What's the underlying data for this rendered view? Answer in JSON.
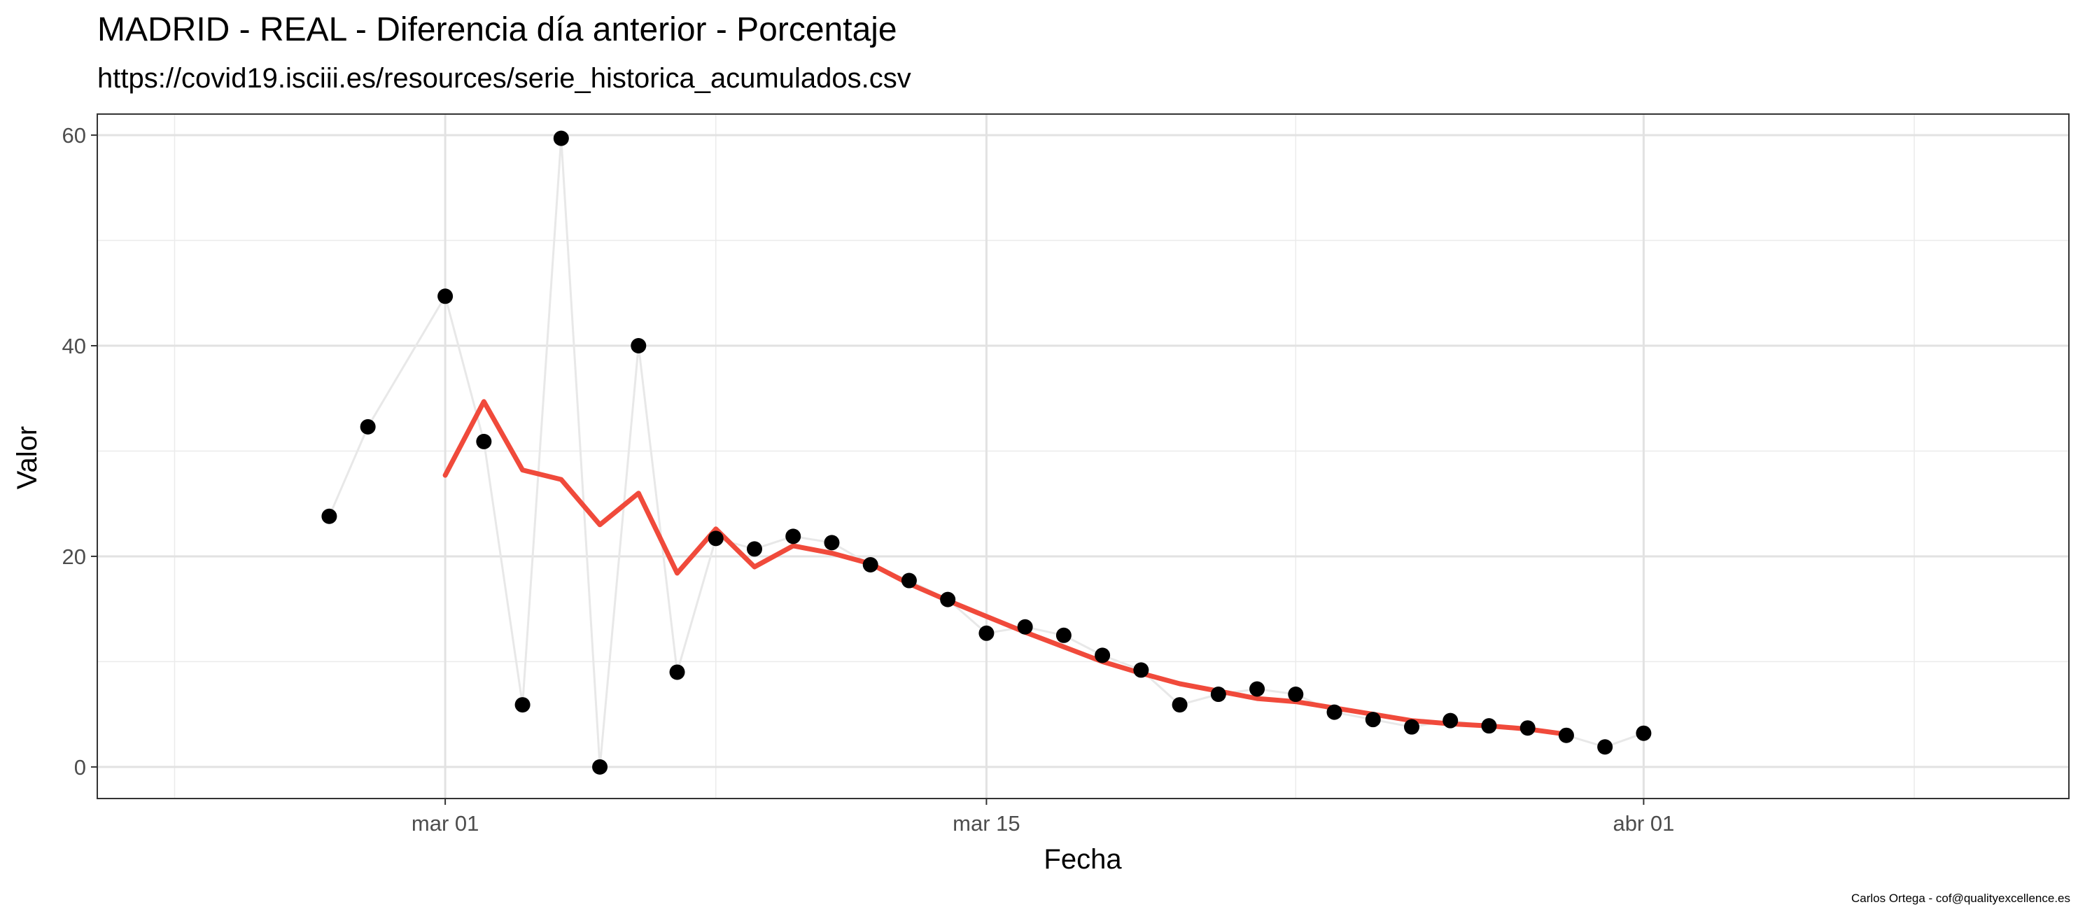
{
  "chart_data": {
    "type": "line",
    "title": "MADRID - REAL - Diferencia día anterior - Porcentaje",
    "subtitle": "https://covid19.isciii.es/resources/serie_historica_acumulados.csv",
    "xlabel": "Fecha",
    "ylabel": "Valor",
    "caption": "Carlos Ortega - cof@qualityexcellence.es",
    "x_axis": {
      "type": "date",
      "range": [
        "2020-02-21",
        "2020-04-12"
      ],
      "ticks": [
        {
          "date": "2020-03-01",
          "label": "mar 01"
        },
        {
          "date": "2020-03-15",
          "label": "mar 15"
        },
        {
          "date": "2020-04-01",
          "label": "abr 01"
        }
      ],
      "minor_grid": [
        "2020-02-23",
        "2020-03-08",
        "2020-03-23",
        "2020-04-08"
      ]
    },
    "y_axis": {
      "range": [
        -3,
        62
      ],
      "ticks": [
        0,
        20,
        40,
        60
      ],
      "minor_grid": [
        10,
        30,
        50
      ]
    },
    "grid": true,
    "series": [
      {
        "style": "points+line",
        "point_color": "#000000",
        "line_color": "#e8e8e8",
        "points": [
          {
            "x": "2020-02-27",
            "y": 23.8
          },
          {
            "x": "2020-02-28",
            "y": 32.3
          },
          {
            "x": "2020-03-01",
            "y": 44.7
          },
          {
            "x": "2020-03-02",
            "y": 30.9
          },
          {
            "x": "2020-03-03",
            "y": 5.9
          },
          {
            "x": "2020-03-04",
            "y": 59.7
          },
          {
            "x": "2020-03-05",
            "y": 0.0
          },
          {
            "x": "2020-03-06",
            "y": 40.0
          },
          {
            "x": "2020-03-07",
            "y": 9.0
          },
          {
            "x": "2020-03-08",
            "y": 21.7
          },
          {
            "x": "2020-03-09",
            "y": 20.7
          },
          {
            "x": "2020-03-10",
            "y": 21.9
          },
          {
            "x": "2020-03-11",
            "y": 21.3
          },
          {
            "x": "2020-03-12",
            "y": 19.2
          },
          {
            "x": "2020-03-13",
            "y": 17.7
          },
          {
            "x": "2020-03-14",
            "y": 15.9
          },
          {
            "x": "2020-03-15",
            "y": 12.7
          },
          {
            "x": "2020-03-16",
            "y": 13.3
          },
          {
            "x": "2020-03-17",
            "y": 12.5
          },
          {
            "x": "2020-03-18",
            "y": 10.6
          },
          {
            "x": "2020-03-19",
            "y": 9.2
          },
          {
            "x": "2020-03-20",
            "y": 5.9
          },
          {
            "x": "2020-03-21",
            "y": 6.9
          },
          {
            "x": "2020-03-22",
            "y": 7.4
          },
          {
            "x": "2020-03-23",
            "y": 6.9
          },
          {
            "x": "2020-03-24",
            "y": 5.2
          },
          {
            "x": "2020-03-25",
            "y": 4.5
          },
          {
            "x": "2020-03-26",
            "y": 3.8
          },
          {
            "x": "2020-03-27",
            "y": 4.4
          },
          {
            "x": "2020-03-28",
            "y": 3.9
          },
          {
            "x": "2020-03-29",
            "y": 3.7
          },
          {
            "x": "2020-03-30",
            "y": 3.0
          },
          {
            "x": "2020-03-31",
            "y": 1.9
          },
          {
            "x": "2020-04-01",
            "y": 3.2
          }
        ]
      },
      {
        "style": "line",
        "line_color": "#f04a3b",
        "points": [
          {
            "x": "2020-03-01",
            "y": 27.7
          },
          {
            "x": "2020-03-02",
            "y": 34.7
          },
          {
            "x": "2020-03-03",
            "y": 28.2
          },
          {
            "x": "2020-03-04",
            "y": 27.3
          },
          {
            "x": "2020-03-05",
            "y": 23.0
          },
          {
            "x": "2020-03-06",
            "y": 26.0
          },
          {
            "x": "2020-03-07",
            "y": 18.4
          },
          {
            "x": "2020-03-08",
            "y": 22.6
          },
          {
            "x": "2020-03-09",
            "y": 19.0
          },
          {
            "x": "2020-03-10",
            "y": 21.0
          },
          {
            "x": "2020-03-11",
            "y": 20.3
          },
          {
            "x": "2020-03-12",
            "y": 19.3
          },
          {
            "x": "2020-03-13",
            "y": 17.4
          },
          {
            "x": "2020-03-14",
            "y": 15.8
          },
          {
            "x": "2020-03-15",
            "y": 14.3
          },
          {
            "x": "2020-03-16",
            "y": 12.8
          },
          {
            "x": "2020-03-17",
            "y": 11.4
          },
          {
            "x": "2020-03-18",
            "y": 10.0
          },
          {
            "x": "2020-03-19",
            "y": 8.9
          },
          {
            "x": "2020-03-20",
            "y": 7.9
          },
          {
            "x": "2020-03-21",
            "y": 7.2
          },
          {
            "x": "2020-03-22",
            "y": 6.5
          },
          {
            "x": "2020-03-23",
            "y": 6.2
          },
          {
            "x": "2020-03-24",
            "y": 5.6
          },
          {
            "x": "2020-03-25",
            "y": 5.0
          },
          {
            "x": "2020-03-26",
            "y": 4.4
          },
          {
            "x": "2020-03-27",
            "y": 4.1
          },
          {
            "x": "2020-03-28",
            "y": 3.9
          },
          {
            "x": "2020-03-29",
            "y": 3.6
          },
          {
            "x": "2020-03-30",
            "y": 3.1
          }
        ]
      }
    ]
  }
}
